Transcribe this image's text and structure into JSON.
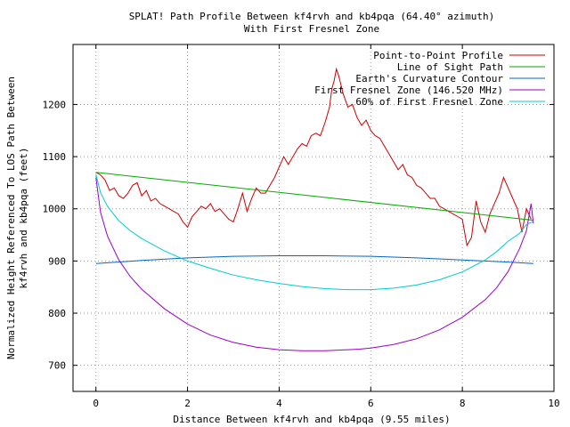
{
  "chart_data": {
    "type": "line",
    "title_line1": "SPLAT! Path Profile Between kf4rvh and kb4pqa (64.40° azimuth)",
    "title_line2": "With First Fresnel Zone",
    "xlabel": "Distance Between kf4rvh and kb4pqa (9.55 miles)",
    "ylabel_line1": "Normalized Height Referenced To LOS Path Between",
    "ylabel_line2": "kf4rvh and kb4pqa (feet)",
    "xlim": [
      -0.5,
      10
    ],
    "ylim": [
      650,
      1315
    ],
    "x_ticks": [
      0,
      2,
      4,
      6,
      8,
      10
    ],
    "y_ticks": [
      700,
      800,
      900,
      1000,
      1100,
      1200
    ],
    "grid": true,
    "legend_position": "top-right",
    "series": [
      {
        "name": "Point-to-Point Profile",
        "color": "#cc0000",
        "x": [
          0,
          0.1,
          0.2,
          0.3,
          0.4,
          0.5,
          0.6,
          0.7,
          0.8,
          0.9,
          1.0,
          1.1,
          1.2,
          1.3,
          1.4,
          1.5,
          1.6,
          1.7,
          1.8,
          1.9,
          2.0,
          2.1,
          2.2,
          2.3,
          2.4,
          2.5,
          2.6,
          2.7,
          2.8,
          2.9,
          3.0,
          3.1,
          3.2,
          3.3,
          3.4,
          3.5,
          3.6,
          3.7,
          3.8,
          3.9,
          4.0,
          4.1,
          4.2,
          4.3,
          4.4,
          4.5,
          4.6,
          4.7,
          4.8,
          4.9,
          5.0,
          5.1,
          5.15,
          5.2,
          5.25,
          5.3,
          5.4,
          5.5,
          5.6,
          5.7,
          5.8,
          5.9,
          6.0,
          6.1,
          6.2,
          6.3,
          6.4,
          6.5,
          6.6,
          6.7,
          6.8,
          6.9,
          7.0,
          7.1,
          7.2,
          7.3,
          7.4,
          7.5,
          7.6,
          7.7,
          7.8,
          7.9,
          8.0,
          8.1,
          8.2,
          8.3,
          8.4,
          8.5,
          8.6,
          8.7,
          8.8,
          8.9,
          9.0,
          9.1,
          9.2,
          9.3,
          9.4,
          9.5
        ],
        "y": [
          1070,
          1065,
          1055,
          1035,
          1040,
          1025,
          1020,
          1030,
          1045,
          1050,
          1025,
          1035,
          1015,
          1020,
          1010,
          1005,
          1000,
          995,
          990,
          975,
          965,
          985,
          995,
          1005,
          1000,
          1010,
          995,
          1000,
          990,
          980,
          975,
          1000,
          1030,
          995,
          1020,
          1040,
          1030,
          1030,
          1045,
          1060,
          1080,
          1100,
          1085,
          1100,
          1115,
          1125,
          1120,
          1140,
          1145,
          1140,
          1165,
          1195,
          1230,
          1245,
          1268,
          1255,
          1220,
          1195,
          1200,
          1175,
          1160,
          1170,
          1150,
          1140,
          1135,
          1120,
          1105,
          1090,
          1075,
          1085,
          1065,
          1060,
          1045,
          1040,
          1030,
          1020,
          1020,
          1005,
          1000,
          995,
          990,
          985,
          980,
          930,
          945,
          1015,
          975,
          955,
          990,
          1010,
          1030,
          1060,
          1040,
          1020,
          1000,
          955,
          1000,
          980
        ]
      },
      {
        "name": "Line of Sight Path",
        "color": "#00aa00",
        "x": [
          0,
          9.55
        ],
        "y": [
          1070,
          978
        ]
      },
      {
        "name": "Earth's Curvature Contour",
        "color": "#0066cc",
        "x": [
          0,
          1,
          2,
          3,
          4,
          5,
          6,
          7,
          8,
          9,
          9.55
        ],
        "y": [
          895,
          901,
          906,
          909,
          910,
          910,
          909,
          906,
          902,
          898,
          895
        ]
      },
      {
        "name": "First Fresnel Zone (146.520 MHz)",
        "color": "#9900cc",
        "x": [
          0,
          0.1,
          0.25,
          0.5,
          0.75,
          1,
          1.5,
          2,
          2.5,
          3,
          3.5,
          4,
          4.5,
          5,
          5.5,
          5.75,
          6,
          6.5,
          7,
          7.5,
          8,
          8.5,
          8.75,
          9,
          9.25,
          9.4,
          9.5,
          9.55
        ],
        "y": [
          1060,
          993,
          948,
          902,
          870,
          846,
          808,
          779,
          758,
          744,
          735,
          730,
          728,
          728,
          730,
          731,
          733,
          740,
          751,
          768,
          792,
          826,
          849,
          880,
          924,
          958,
          1010,
          972
        ]
      },
      {
        "name": "60% of First Fresnel Zone",
        "color": "#00cccc",
        "x": [
          0,
          0.1,
          0.25,
          0.5,
          0.75,
          1,
          1.5,
          2,
          2.5,
          3,
          3.5,
          4,
          4.5,
          5,
          5.5,
          6,
          6.5,
          7,
          7.5,
          8,
          8.5,
          8.75,
          9,
          9.25,
          9.4,
          9.55
        ],
        "y": [
          1066,
          1031,
          1005,
          977,
          958,
          943,
          919,
          900,
          886,
          873,
          864,
          857,
          851,
          847,
          845,
          845,
          848,
          854,
          864,
          879,
          902,
          918,
          938,
          953,
          970,
          976
        ]
      }
    ]
  }
}
